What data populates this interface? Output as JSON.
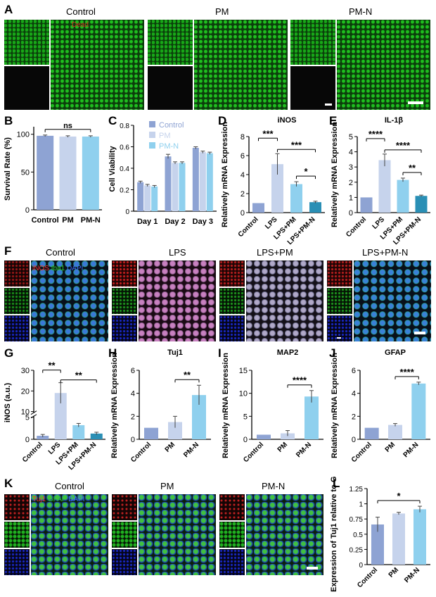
{
  "panels": {
    "A": "A",
    "B": "B",
    "C": "C",
    "D": "D",
    "E": "E",
    "F": "F",
    "G": "G",
    "H": "H",
    "I": "I",
    "J": "J",
    "K": "K",
    "L": "L"
  },
  "panel_a": {
    "titles": [
      "Control",
      "PM",
      "PM-N"
    ],
    "stain_label": "Dead"
  },
  "panel_f": {
    "titles": [
      "Control",
      "LPS",
      "LPS+PM",
      "LPS+PM-N"
    ],
    "legend": {
      "p1": "iNOS",
      "p2": "Iba1",
      "p3": "DAPI"
    }
  },
  "panel_k": {
    "titles": [
      "Control",
      "PM",
      "PM-N"
    ],
    "legend": {
      "p1": "Tuj1",
      "p2": "GFAP",
      "p3": "DAPI"
    }
  },
  "colors": {
    "dark_blue": "#8EA3D3",
    "light_blue": "#C6D3EC",
    "sky_blue": "#8FD0EE",
    "teal": "#2A8FB5",
    "control_gray_blue": "#97A9D6"
  },
  "chart_data": [
    {
      "id": "B",
      "type": "bar",
      "ylabel": "Survival Rate (%)",
      "categories": [
        "Control",
        "PM",
        "PM-N"
      ],
      "values": [
        98,
        97,
        97
      ],
      "errors": [
        1,
        1,
        1
      ],
      "ylim": [
        0,
        110
      ],
      "yticks": [
        0,
        50,
        100
      ],
      "colors": [
        "#8EA3D3",
        "#C6D3EC",
        "#8FD0EE"
      ],
      "annotations": [
        {
          "from": 0,
          "to": 2,
          "text": "ns"
        }
      ]
    },
    {
      "id": "C",
      "type": "bar",
      "ylabel": "Cell Viability",
      "categories": [
        "Day 1",
        "Day 2",
        "Day 3"
      ],
      "series": [
        {
          "name": "Control",
          "values": [
            0.27,
            0.51,
            0.59
          ],
          "errors": [
            0.01,
            0.02,
            0.01
          ],
          "color": "#8EA3D3"
        },
        {
          "name": "PM",
          "values": [
            0.24,
            0.45,
            0.55
          ],
          "errors": [
            0.01,
            0.01,
            0.01
          ],
          "color": "#C6D3EC"
        },
        {
          "name": "PM-N",
          "values": [
            0.23,
            0.45,
            0.54
          ],
          "errors": [
            0.01,
            0.01,
            0.01
          ],
          "color": "#8FD0EE"
        }
      ],
      "ylim": [
        0,
        0.8
      ],
      "yticks": [
        0.0,
        0.2,
        0.4,
        0.6,
        0.8
      ],
      "legend": "top"
    },
    {
      "id": "D",
      "type": "bar",
      "title": "iNOS",
      "ylabel": "Relatively mRNA Expression",
      "categories": [
        "Control",
        "LPS",
        "LPS+PM",
        "LPS+PM-N"
      ],
      "values": [
        1,
        5.1,
        3.0,
        1.1
      ],
      "errors": [
        0,
        1.1,
        0.25,
        0.1
      ],
      "ylim": [
        0,
        8
      ],
      "yticks": [
        0,
        2,
        4,
        6,
        8
      ],
      "colors": [
        "#8EA3D3",
        "#C6D3EC",
        "#8FD0EE",
        "#2A8FB5"
      ],
      "annotations": [
        {
          "from": 0,
          "to": 1,
          "text": "***"
        },
        {
          "from": 1,
          "to": 3,
          "text": "***"
        },
        {
          "from": 2,
          "to": 3,
          "text": "*"
        }
      ]
    },
    {
      "id": "E",
      "type": "bar",
      "title": "IL-1β",
      "ylabel": "Relatively mRNA Expression",
      "categories": [
        "Control",
        "LPS",
        "LPS+PM",
        "LPS+PM-N"
      ],
      "values": [
        1,
        3.45,
        2.15,
        1.1
      ],
      "errors": [
        0,
        0.4,
        0.12,
        0.05
      ],
      "ylim": [
        0,
        5
      ],
      "yticks": [
        0,
        1,
        2,
        3,
        4,
        5
      ],
      "colors": [
        "#8EA3D3",
        "#C6D3EC",
        "#8FD0EE",
        "#2A8FB5"
      ],
      "annotations": [
        {
          "from": 0,
          "to": 1,
          "text": "****"
        },
        {
          "from": 1,
          "to": 3,
          "text": "****"
        },
        {
          "from": 2,
          "to": 3,
          "text": "**"
        }
      ]
    },
    {
      "id": "G",
      "type": "bar",
      "ylabel": "iNOS (a.u.)",
      "categories": [
        "Control",
        "LPS",
        "LPS+PM",
        "LPS+PM-N"
      ],
      "values": [
        0.8,
        19,
        3.2,
        1.3
      ],
      "errors": [
        0.3,
        5,
        0.4,
        0.3
      ],
      "broken_axis": [
        5,
        10
      ],
      "yticks": [
        0,
        5,
        10,
        20,
        30
      ],
      "colors": [
        "#8EA3D3",
        "#C6D3EC",
        "#8FD0EE",
        "#2A8FB5"
      ],
      "annotations": [
        {
          "from": 0,
          "to": 1,
          "text": "**"
        },
        {
          "from": 1,
          "to": 3,
          "text": "**"
        }
      ]
    },
    {
      "id": "H",
      "type": "bar",
      "title": "Tuj1",
      "ylabel": "Relatively mRNA Expression",
      "categories": [
        "Control",
        "PM",
        "PM-N"
      ],
      "values": [
        1,
        1.5,
        3.85
      ],
      "errors": [
        0,
        0.5,
        0.85
      ],
      "ylim": [
        0,
        6
      ],
      "yticks": [
        0,
        2,
        4,
        6
      ],
      "colors": [
        "#8EA3D3",
        "#C6D3EC",
        "#8FD0EE"
      ],
      "annotations": [
        {
          "from": 1,
          "to": 2,
          "text": "**"
        }
      ]
    },
    {
      "id": "I",
      "type": "bar",
      "title": "MAP2",
      "ylabel": "Relatively mRNA Expression",
      "categories": [
        "Control",
        "PM",
        "PM-N"
      ],
      "values": [
        1,
        1.3,
        9.3
      ],
      "errors": [
        0,
        0.6,
        1.3
      ],
      "ylim": [
        0,
        15
      ],
      "yticks": [
        0,
        5,
        10,
        15
      ],
      "colors": [
        "#8EA3D3",
        "#C6D3EC",
        "#8FD0EE"
      ],
      "annotations": [
        {
          "from": 1,
          "to": 2,
          "text": "****"
        }
      ]
    },
    {
      "id": "J",
      "type": "bar",
      "title": "GFAP",
      "ylabel": "Relatively mRNA Expression",
      "categories": [
        "Control",
        "PM",
        "PM-N"
      ],
      "values": [
        1,
        1.25,
        4.85
      ],
      "errors": [
        0,
        0.12,
        0.12
      ],
      "ylim": [
        0,
        6
      ],
      "yticks": [
        0,
        2,
        4,
        6
      ],
      "colors": [
        "#8EA3D3",
        "#C6D3EC",
        "#8FD0EE"
      ],
      "annotations": [
        {
          "from": 1,
          "to": 2,
          "text": "****"
        }
      ]
    },
    {
      "id": "L",
      "type": "bar",
      "ylabel": "Expression of Tuj1 relative to GFAP",
      "categories": [
        "Control",
        "PM",
        "PM-N"
      ],
      "values": [
        0.66,
        0.84,
        0.91
      ],
      "errors": [
        0.12,
        0.02,
        0.05
      ],
      "ylim": [
        0,
        1.25
      ],
      "yticks": [
        0.0,
        0.25,
        0.5,
        0.75,
        1.0,
        1.25
      ],
      "colors": [
        "#8EA3D3",
        "#C6D3EC",
        "#8FD0EE"
      ],
      "annotations": [
        {
          "from": 0,
          "to": 2,
          "text": "*"
        }
      ]
    }
  ]
}
